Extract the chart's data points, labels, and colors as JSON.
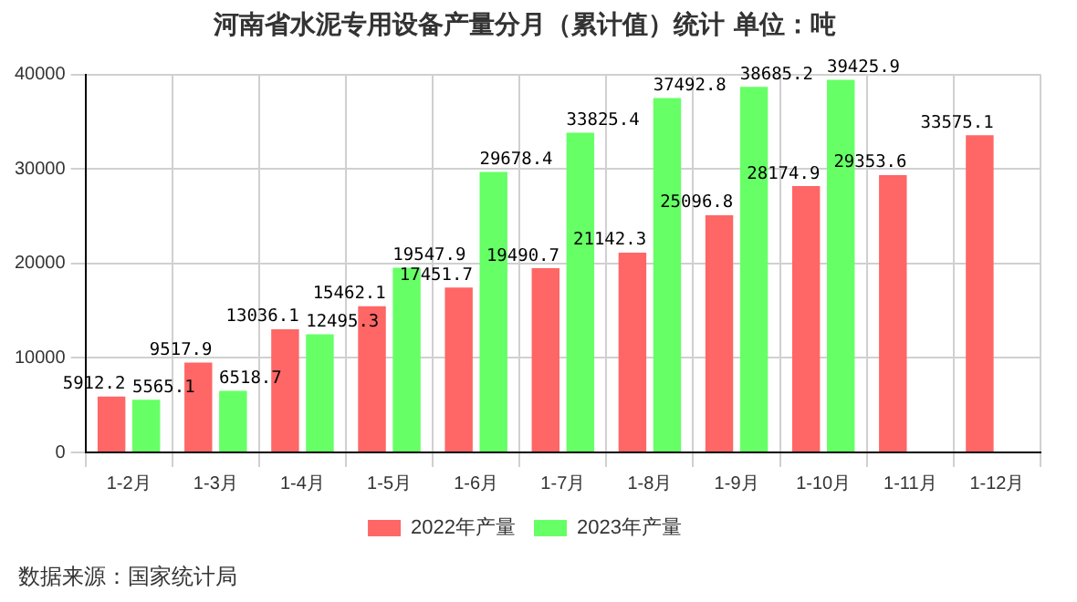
{
  "chart_data": {
    "type": "bar",
    "title": "河南省水泥专用设备产量分月（累计值）统计 单位：吨",
    "categories": [
      "1-2月",
      "1-3月",
      "1-4月",
      "1-5月",
      "1-6月",
      "1-7月",
      "1-8月",
      "1-9月",
      "1-10月",
      "1-11月",
      "1-12月"
    ],
    "series": [
      {
        "name": "2022年产量",
        "color": "#ff6666",
        "values": [
          5912.2,
          9517.9,
          13036.1,
          15462.1,
          17451.7,
          19490.7,
          21142.3,
          25096.8,
          28174.9,
          29353.6,
          33575.1
        ]
      },
      {
        "name": "2023年产量",
        "color": "#66ff66",
        "values": [
          5565.1,
          6518.7,
          12495.3,
          19547.9,
          29678.4,
          33825.4,
          37492.8,
          38685.2,
          39425.9,
          null,
          null
        ]
      }
    ],
    "ylim": [
      0,
      40000
    ],
    "yticks": [
      0,
      10000,
      20000,
      30000,
      40000
    ],
    "grid": true,
    "legend": "bottom",
    "data_labels": true,
    "annotations": [
      "数据来源：国家统计局"
    ]
  }
}
